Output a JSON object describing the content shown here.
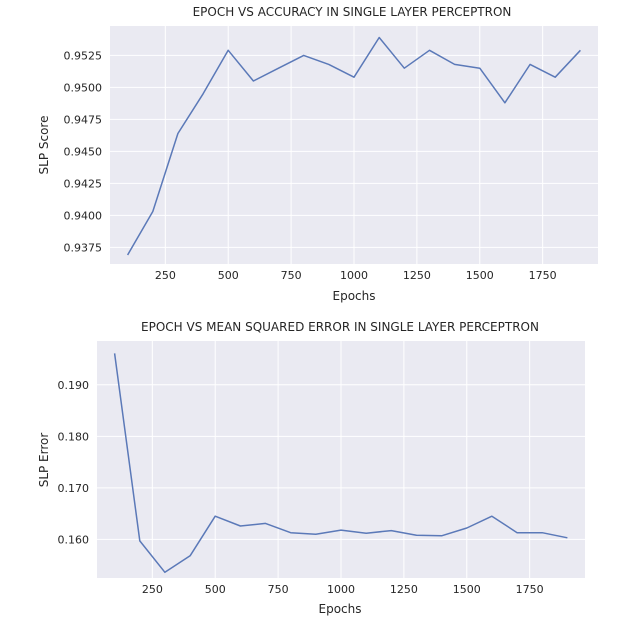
{
  "chart_data": [
    {
      "type": "line",
      "title": "EPOCH VS ACCURACY IN SINGLE LAYER PERCEPTRON",
      "xlabel": "Epochs",
      "ylabel": "SLP Score",
      "xlim": [
        30,
        1970
      ],
      "ylim": [
        0.9362,
        0.9548
      ],
      "xticks": [
        250,
        500,
        750,
        1000,
        1250,
        1500,
        1750
      ],
      "xtick_labels": [
        "250",
        "500",
        "750",
        "1000",
        "1250",
        "1500",
        "1750"
      ],
      "yticks": [
        0.9375,
        0.94,
        0.9425,
        0.945,
        0.9475,
        0.95,
        0.9525
      ],
      "ytick_labels": [
        "0.9375",
        "0.9400",
        "0.9425",
        "0.9450",
        "0.9475",
        "0.9500",
        "0.9525"
      ],
      "grid": true,
      "series": [
        {
          "color": "#5b79b8",
          "x": [
            100,
            200,
            300,
            400,
            500,
            600,
            700,
            800,
            900,
            1000,
            1100,
            1200,
            1300,
            1400,
            1500,
            1600,
            1700,
            1800,
            1900
          ],
          "y": [
            0.9369,
            0.9403,
            0.9464,
            0.9495,
            0.9529,
            0.9505,
            0.9515,
            0.9525,
            0.9518,
            0.9508,
            0.9539,
            0.9515,
            0.9529,
            0.9518,
            0.9515,
            0.9488,
            0.9518,
            0.9508,
            0.9529
          ]
        }
      ]
    },
    {
      "type": "line",
      "title": "EPOCH VS MEAN SQUARED ERROR IN SINGLE LAYER PERCEPTRON",
      "xlabel": "Epochs",
      "ylabel": "SLP Error",
      "xlim": [
        30,
        1970
      ],
      "ylim": [
        0.1525,
        0.1985
      ],
      "xticks": [
        250,
        500,
        750,
        1000,
        1250,
        1500,
        1750
      ],
      "xtick_labels": [
        "250",
        "500",
        "750",
        "1000",
        "1250",
        "1500",
        "1750"
      ],
      "yticks": [
        0.16,
        0.17,
        0.18,
        0.19
      ],
      "ytick_labels": [
        "0.160",
        "0.170",
        "0.180",
        "0.190"
      ],
      "grid": true,
      "series": [
        {
          "color": "#5b79b8",
          "x": [
            100,
            200,
            300,
            400,
            500,
            600,
            700,
            800,
            900,
            1000,
            1100,
            1200,
            1300,
            1400,
            1500,
            1600,
            1700,
            1800,
            1900
          ],
          "y": [
            0.1961,
            0.1597,
            0.1536,
            0.1568,
            0.1645,
            0.1626,
            0.1631,
            0.1613,
            0.161,
            0.1618,
            0.1612,
            0.1617,
            0.1608,
            0.1607,
            0.1622,
            0.1645,
            0.1613,
            0.1613,
            0.1603
          ]
        }
      ]
    }
  ]
}
